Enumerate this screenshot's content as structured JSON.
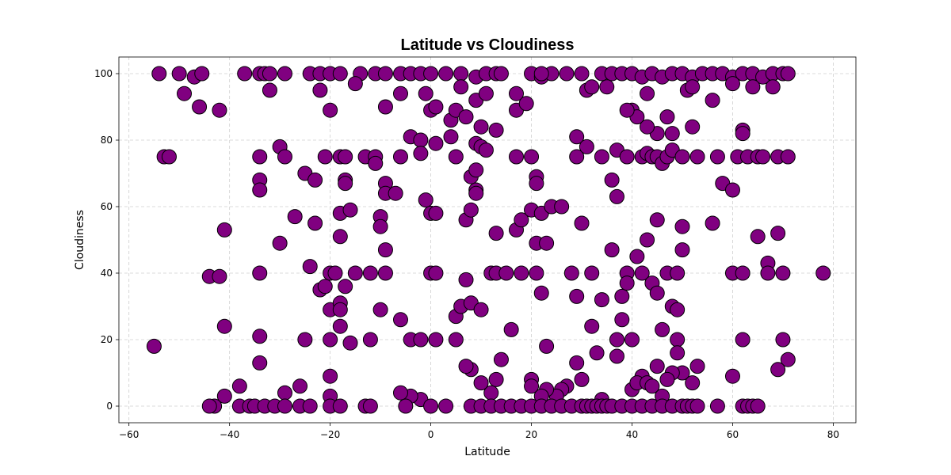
{
  "chart_data": {
    "type": "scatter",
    "title": "Latitude vs Cloudiness",
    "xlabel": "Latitude",
    "ylabel": "Cloudiness",
    "xlim": [
      -62,
      84.5
    ],
    "ylim": [
      -5,
      105
    ],
    "xticks": [
      -60,
      -40,
      -20,
      0,
      20,
      40,
      60,
      80
    ],
    "yticks": [
      0,
      20,
      40,
      60,
      80,
      100
    ],
    "grid": true,
    "marker_color": "#800080",
    "edge_color": "#000000",
    "points": [
      [
        -54,
        100
      ],
      [
        -50,
        100
      ],
      [
        -47,
        99
      ],
      [
        -45.5,
        100
      ],
      [
        -37,
        100
      ],
      [
        -34,
        100
      ],
      [
        -33,
        100
      ],
      [
        -32,
        100
      ],
      [
        -29,
        100
      ],
      [
        -24,
        100
      ],
      [
        -22,
        100
      ],
      [
        -20,
        100
      ],
      [
        -18,
        100
      ],
      [
        -14,
        100
      ],
      [
        -11,
        100
      ],
      [
        -9,
        100
      ],
      [
        -6,
        100
      ],
      [
        -4,
        100
      ],
      [
        -2,
        100
      ],
      [
        0,
        100
      ],
      [
        3,
        100
      ],
      [
        6,
        100
      ],
      [
        9,
        99
      ],
      [
        11,
        100
      ],
      [
        13,
        100
      ],
      [
        14,
        100
      ],
      [
        20,
        100
      ],
      [
        22,
        99
      ],
      [
        24,
        100
      ],
      [
        27,
        100
      ],
      [
        30,
        100
      ],
      [
        34,
        100
      ],
      [
        36,
        100
      ],
      [
        38,
        100
      ],
      [
        40,
        100
      ],
      [
        42,
        99
      ],
      [
        44,
        100
      ],
      [
        46,
        99
      ],
      [
        48,
        100
      ],
      [
        50,
        100
      ],
      [
        52,
        99
      ],
      [
        54,
        100
      ],
      [
        56,
        100
      ],
      [
        58,
        100
      ],
      [
        60,
        99
      ],
      [
        62,
        100
      ],
      [
        64,
        100
      ],
      [
        66,
        99
      ],
      [
        68,
        100
      ],
      [
        70,
        100
      ],
      [
        71,
        100
      ],
      [
        -49,
        94
      ],
      [
        -46,
        90
      ],
      [
        -42,
        89
      ],
      [
        -32,
        95
      ],
      [
        -22,
        95
      ],
      [
        -20,
        89
      ],
      [
        -15,
        97
      ],
      [
        -9,
        90
      ],
      [
        -6,
        94
      ],
      [
        -1,
        94
      ],
      [
        0,
        89
      ],
      [
        1,
        90
      ],
      [
        4,
        86
      ],
      [
        5,
        89
      ],
      [
        6,
        96
      ],
      [
        7,
        87
      ],
      [
        9,
        92
      ],
      [
        11,
        94
      ],
      [
        17,
        94
      ],
      [
        17,
        89
      ],
      [
        19,
        91
      ],
      [
        22,
        100
      ],
      [
        31,
        95
      ],
      [
        32,
        96
      ],
      [
        35,
        96
      ],
      [
        40,
        89
      ],
      [
        41,
        87
      ],
      [
        43,
        94
      ],
      [
        45,
        82
      ],
      [
        47,
        87
      ],
      [
        48,
        82
      ],
      [
        51,
        95
      ],
      [
        52,
        96
      ],
      [
        56,
        92
      ],
      [
        60,
        97
      ],
      [
        62,
        83
      ],
      [
        62,
        82
      ],
      [
        64,
        96
      ],
      [
        68,
        96
      ],
      [
        -53,
        75
      ],
      [
        -52,
        75
      ],
      [
        -34,
        75
      ],
      [
        -30,
        78
      ],
      [
        -29,
        75
      ],
      [
        -21,
        75
      ],
      [
        -18,
        75
      ],
      [
        -17,
        75
      ],
      [
        -13,
        75
      ],
      [
        -11,
        75
      ],
      [
        -6,
        75
      ],
      [
        -4,
        81
      ],
      [
        -2,
        80
      ],
      [
        -2,
        76
      ],
      [
        1,
        79
      ],
      [
        4,
        81
      ],
      [
        5,
        75
      ],
      [
        9,
        79
      ],
      [
        10,
        84
      ],
      [
        10,
        78
      ],
      [
        11,
        77
      ],
      [
        13,
        83
      ],
      [
        17,
        75
      ],
      [
        20,
        75
      ],
      [
        29,
        81
      ],
      [
        29,
        75
      ],
      [
        31,
        78
      ],
      [
        34,
        75
      ],
      [
        37,
        77
      ],
      [
        39,
        89
      ],
      [
        39,
        75
      ],
      [
        42,
        75
      ],
      [
        43,
        84
      ],
      [
        43,
        76
      ],
      [
        44,
        75
      ],
      [
        45,
        75
      ],
      [
        46,
        73
      ],
      [
        47,
        75
      ],
      [
        48,
        77
      ],
      [
        50,
        75
      ],
      [
        52,
        84
      ],
      [
        53,
        75
      ],
      [
        57,
        75
      ],
      [
        61,
        75
      ],
      [
        63,
        75
      ],
      [
        65,
        75
      ],
      [
        66,
        75
      ],
      [
        69,
        75
      ],
      [
        71,
        75
      ],
      [
        -34,
        68
      ],
      [
        -34,
        65
      ],
      [
        -27,
        57
      ],
      [
        -25,
        70
      ],
      [
        -23,
        68
      ],
      [
        -23,
        55
      ],
      [
        -18,
        58
      ],
      [
        -17,
        68
      ],
      [
        -17,
        67
      ],
      [
        -16,
        59
      ],
      [
        -18,
        51
      ],
      [
        -11,
        73
      ],
      [
        -10,
        57
      ],
      [
        -10,
        54
      ],
      [
        -9,
        67
      ],
      [
        -9,
        64
      ],
      [
        -7,
        64
      ],
      [
        -1,
        62
      ],
      [
        0,
        58
      ],
      [
        1,
        58
      ],
      [
        7,
        56
      ],
      [
        8,
        69
      ],
      [
        8,
        59
      ],
      [
        9,
        71
      ],
      [
        9,
        65
      ],
      [
        9,
        64
      ],
      [
        13,
        52
      ],
      [
        17,
        53
      ],
      [
        18,
        56
      ],
      [
        20,
        59
      ],
      [
        21,
        69
      ],
      [
        21,
        67
      ],
      [
        21,
        49
      ],
      [
        22,
        58
      ],
      [
        23,
        49
      ],
      [
        24,
        60
      ],
      [
        26,
        60
      ],
      [
        30,
        55
      ],
      [
        36,
        68
      ],
      [
        37,
        63
      ],
      [
        43,
        50
      ],
      [
        45,
        56
      ],
      [
        50,
        54
      ],
      [
        50,
        47
      ],
      [
        56,
        55
      ],
      [
        58,
        67
      ],
      [
        60,
        65
      ],
      [
        65,
        51
      ],
      [
        69,
        52
      ],
      [
        -55,
        18
      ],
      [
        -44,
        39
      ],
      [
        -42,
        39
      ],
      [
        -41,
        53
      ],
      [
        -41,
        24
      ],
      [
        -34,
        40
      ],
      [
        -34,
        21
      ],
      [
        -34,
        13
      ],
      [
        -30,
        49
      ],
      [
        -25,
        20
      ],
      [
        -24,
        42
      ],
      [
        -22,
        35
      ],
      [
        -21,
        36
      ],
      [
        -20,
        40
      ],
      [
        -20,
        29
      ],
      [
        -20,
        20
      ],
      [
        -19,
        40
      ],
      [
        -18,
        31
      ],
      [
        -18,
        29
      ],
      [
        -18,
        24
      ],
      [
        -17,
        36
      ],
      [
        -16,
        19
      ],
      [
        -15,
        40
      ],
      [
        -12,
        40
      ],
      [
        -12,
        20
      ],
      [
        -10,
        29
      ],
      [
        -9,
        47
      ],
      [
        -9,
        40
      ],
      [
        -6,
        26
      ],
      [
        -4,
        20
      ],
      [
        -2,
        20
      ],
      [
        0,
        40
      ],
      [
        1,
        40
      ],
      [
        1,
        20
      ],
      [
        5,
        27
      ],
      [
        5,
        20
      ],
      [
        6,
        30
      ],
      [
        7,
        38
      ],
      [
        8,
        31
      ],
      [
        10,
        29
      ],
      [
        12,
        40
      ],
      [
        13,
        40
      ],
      [
        15,
        40
      ],
      [
        16,
        23
      ],
      [
        18,
        40
      ],
      [
        21,
        40
      ],
      [
        22,
        34
      ],
      [
        23,
        18
      ],
      [
        28,
        40
      ],
      [
        29,
        33
      ],
      [
        32,
        40
      ],
      [
        32,
        24
      ],
      [
        34,
        32
      ],
      [
        36,
        47
      ],
      [
        37,
        15
      ],
      [
        37,
        20
      ],
      [
        38,
        33
      ],
      [
        38,
        26
      ],
      [
        39,
        40
      ],
      [
        39,
        37
      ],
      [
        40,
        20
      ],
      [
        41,
        45
      ],
      [
        42,
        40
      ],
      [
        44,
        37
      ],
      [
        45,
        34
      ],
      [
        46,
        23
      ],
      [
        47,
        40
      ],
      [
        48,
        30
      ],
      [
        49,
        40
      ],
      [
        49,
        29
      ],
      [
        49,
        20
      ],
      [
        49,
        16
      ],
      [
        60,
        40
      ],
      [
        62,
        40
      ],
      [
        62,
        20
      ],
      [
        67,
        43
      ],
      [
        67,
        40
      ],
      [
        70,
        40
      ],
      [
        70,
        20
      ],
      [
        78,
        40
      ],
      [
        71,
        14
      ],
      [
        69,
        11
      ],
      [
        60,
        9
      ],
      [
        53,
        12
      ],
      [
        52,
        7
      ],
      [
        50,
        10
      ],
      [
        48,
        10
      ],
      [
        47,
        8
      ],
      [
        46,
        3
      ],
      [
        42,
        9
      ],
      [
        40,
        5
      ],
      [
        41,
        7
      ],
      [
        43,
        7
      ],
      [
        45,
        12
      ],
      [
        44,
        6
      ],
      [
        33,
        16
      ],
      [
        34,
        2
      ],
      [
        30,
        8
      ],
      [
        29,
        13
      ],
      [
        27,
        6
      ],
      [
        26,
        5
      ],
      [
        25,
        3
      ],
      [
        23,
        5
      ],
      [
        22,
        3
      ],
      [
        20,
        8
      ],
      [
        20,
        6
      ],
      [
        14,
        14
      ],
      [
        13,
        8
      ],
      [
        12,
        4
      ],
      [
        10,
        7
      ],
      [
        8,
        11
      ],
      [
        7,
        12
      ],
      [
        -2,
        2
      ],
      [
        -4,
        3
      ],
      [
        -6,
        4
      ],
      [
        -20,
        9
      ],
      [
        -20,
        3
      ],
      [
        -26,
        6
      ],
      [
        -29,
        4
      ],
      [
        -38,
        6
      ],
      [
        -41,
        3
      ],
      [
        -43,
        0
      ]
    ],
    "zero_row": [
      -44,
      -38,
      -36,
      -35,
      -33,
      -31,
      -29,
      -26,
      -24,
      -20,
      -18,
      -13,
      -12,
      -5,
      0,
      3,
      8,
      10,
      12,
      14,
      16,
      18,
      20,
      22,
      24,
      26,
      28,
      30,
      31,
      32,
      33,
      34,
      35,
      36,
      38,
      40,
      42,
      44,
      46,
      48,
      50,
      51,
      52,
      53,
      57,
      62,
      63,
      64,
      65
    ]
  }
}
